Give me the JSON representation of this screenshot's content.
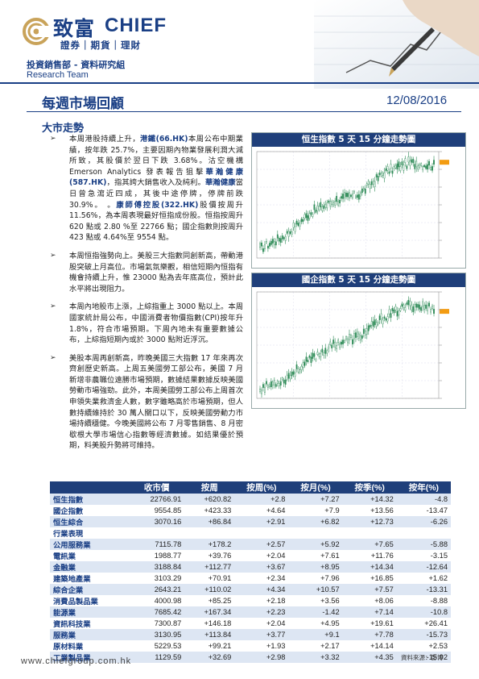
{
  "header": {
    "logo_cn": "致富",
    "logo_en": "CHIEF",
    "logo_sub": "證券｜期貨｜理財",
    "dept": "投資銷售部 - 資料研究組",
    "team": "Research Team"
  },
  "report": {
    "title": "每週市場回顧",
    "date": "12/08/2016",
    "section": "大市走勢"
  },
  "bullets": [
    {
      "html": "本周港股持續上升，<b>港鐵(66.HK)</b>本周公布中期業績，按年跌 25.7%，主要因期內物業發展利潤大減所致，其股價於翌日下跌 3.68%。沽空機構 Emerson Analytics 發表報告狙擊<b>華瀚健康(587.HK)</b>，指其誇大銷售收入及純利。<b>華瀚健康</b>當日曾急瀉近四成，其後中途停牌，停牌前跌 30.9%。 。<b>康師傅控股(322.HK)</b>股價按周升 11.56%，為本周表現最好恒指成份股。恒指按周升 620 點或 2.80 %至 22766 點；國企指數則按周升 423 點或 4.64%至 9554 點。"
    },
    {
      "html": "本周恒指強勢向上。美股三大指數同創新高，帶動港股突破上月高位。市場氣氛樂觀，相信短期內恒指有機會持續上升，惟 23000 點為去年底高位，預計此水平將出現阻力。"
    },
    {
      "html": "本周內地股市上漲，上綜指重上 3000 點以上。本周國家統計局公布，中國消費者物價指數(CPI)按年升 1.8%，符合市場預期。下周內地未有重要數據公布，上綜指短期內或於 3000 點附近浮沉。"
    },
    {
      "html": "美股本周再創新高，昨晚美國三大指數 17 年來再次齊創歷史新高。上周五美國勞工部公布，美國 7 月新增非農職位遠勝市場預期，數據結果數據反映美國勞動市場強勁。此外，本周美國勞工部公布上周首次申領失業救濟金人數，數字雖略高於市場預期，但人數持續維持於 30 萬人關口以下，反映美國勞動力市場持續穩健。今晚美國將公布 7 月零售銷售、8 月密歇根大學市場信心指數等經濟數據。如結果優於預期，料美股升勢將可維持。"
    }
  ],
  "charts": {
    "hsi_title": "恒生指數 5 天 15 分鐘走勢圖",
    "hscei_title": "國企指數 5 天 15 分鐘走勢圖"
  },
  "table": {
    "headers": [
      "",
      "收市價",
      "按周",
      "按周(%)",
      "按月(%)",
      "按季(%)",
      "按年(%)"
    ],
    "rows": [
      {
        "name": "恒生指數",
        "close": "22766.91",
        "wk": "+620.82",
        "wkp": "+2.8",
        "mo": "+7.27",
        "qt": "+14.32",
        "yr": "-4.8"
      },
      {
        "name": "國企指數",
        "close": "9554.85",
        "wk": "+423.33",
        "wkp": "+4.64",
        "mo": "+7.9",
        "qt": "+13.56",
        "yr": "-13.47"
      },
      {
        "name": "恒生綜合",
        "close": "3070.16",
        "wk": "+86.84",
        "wkp": "+2.91",
        "mo": "+6.82",
        "qt": "+12.73",
        "yr": "-6.26"
      },
      {
        "name": "行業表現",
        "category": true
      },
      {
        "name": "公用服務業",
        "close": "7115.78",
        "wk": "+178.2",
        "wkp": "+2.57",
        "mo": "+5.92",
        "qt": "+7.65",
        "yr": "-5.88"
      },
      {
        "name": "電訊業",
        "close": "1988.77",
        "wk": "+39.76",
        "wkp": "+2.04",
        "mo": "+7.61",
        "qt": "+11.76",
        "yr": "-3.15"
      },
      {
        "name": "金融業",
        "close": "3188.84",
        "wk": "+112.77",
        "wkp": "+3.67",
        "mo": "+8.95",
        "qt": "+14.34",
        "yr": "-12.64"
      },
      {
        "name": "建築地產業",
        "close": "3103.29",
        "wk": "+70.91",
        "wkp": "+2.34",
        "mo": "+7.96",
        "qt": "+16.85",
        "yr": "+1.62"
      },
      {
        "name": "綜合企業",
        "close": "2643.21",
        "wk": "+110.02",
        "wkp": "+4.34",
        "mo": "+10.57",
        "qt": "+7.57",
        "yr": "-13.31"
      },
      {
        "name": "消費品製品業",
        "close": "4000.98",
        "wk": "+85.25",
        "wkp": "+2.18",
        "mo": "+3.56",
        "qt": "+8.06",
        "yr": "-8.88"
      },
      {
        "name": "能源業",
        "close": "7685.42",
        "wk": "+167.34",
        "wkp": "+2.23",
        "mo": "-1.42",
        "qt": "+7.14",
        "yr": "-10.8"
      },
      {
        "name": "資訊科技業",
        "close": "7300.87",
        "wk": "+146.18",
        "wkp": "+2.04",
        "mo": "+4.95",
        "qt": "+19.61",
        "yr": "+26.41"
      },
      {
        "name": "服務業",
        "close": "3130.95",
        "wk": "+113.84",
        "wkp": "+3.77",
        "mo": "+9.1",
        "qt": "+7.78",
        "yr": "-15.73"
      },
      {
        "name": "原材料業",
        "close": "5229.53",
        "wk": "+99.21",
        "wkp": "+1.93",
        "mo": "+2.17",
        "qt": "+14.14",
        "yr": "+2.53"
      },
      {
        "name": "工業製品業",
        "close": "1129.59",
        "wk": "+32.69",
        "wkp": "+2.98",
        "mo": "+3.32",
        "qt": "+4.35",
        "yr": "-15.02"
      }
    ]
  },
  "source": "資料來源：彭博",
  "footer_url": "www.chiefgroup.com.hk",
  "colors": {
    "brand": "#1a3f85",
    "header_bar": "#1f3f7a",
    "row_shade": "#dde6f3"
  }
}
